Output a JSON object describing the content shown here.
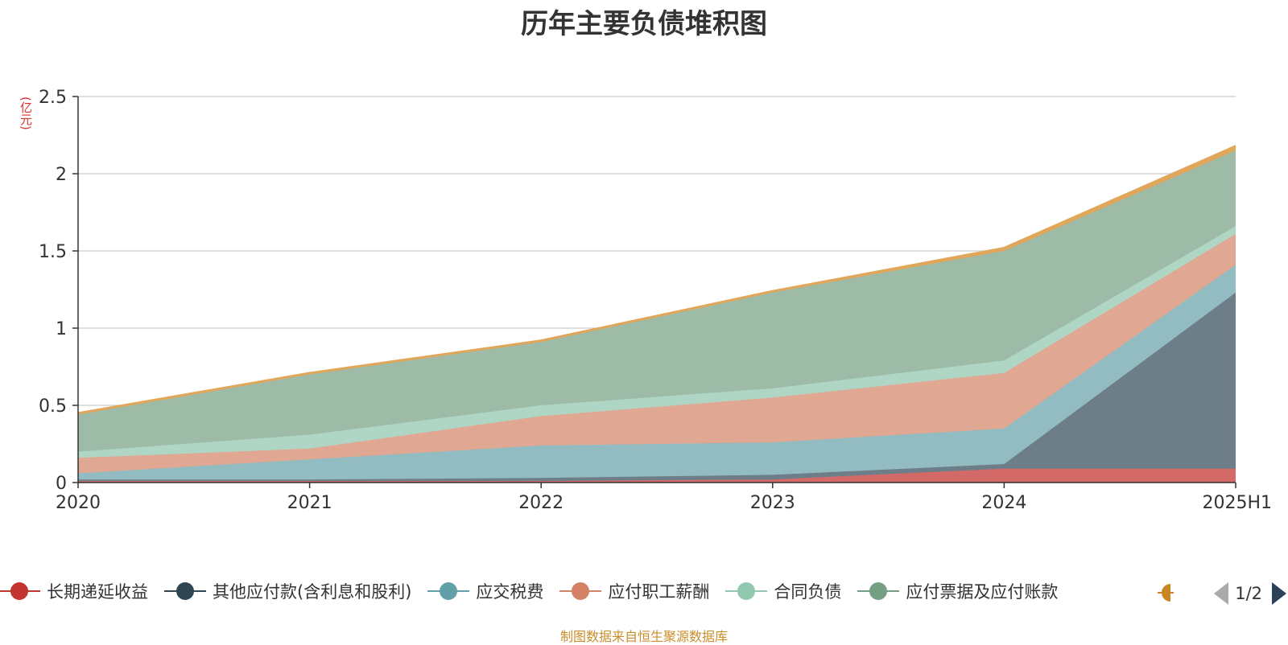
{
  "chart_data": {
    "type": "area",
    "title": "历年主要负债堆积图",
    "unit_label": "(亿元)",
    "categories": [
      "2020",
      "2021",
      "2022",
      "2023",
      "2024",
      "2025H1"
    ],
    "yticks": [
      "0",
      "0.5",
      "1",
      "1.5",
      "2",
      "2.5"
    ],
    "ylim": [
      0,
      2.5
    ],
    "stacked": true,
    "grid": true,
    "series": [
      {
        "name": "长期递延收益",
        "color": "#c23531",
        "fill": "#d46a68",
        "values": [
          0.01,
          0.01,
          0.01,
          0.02,
          0.09,
          0.09
        ]
      },
      {
        "name": "其他应付款(含利息和股利)",
        "color": "#2f4554",
        "fill": "#6e7e89",
        "values": [
          0.01,
          0.01,
          0.02,
          0.03,
          0.03,
          1.14
        ]
      },
      {
        "name": "应交税费",
        "color": "#61a0a8",
        "fill": "#92bcc1",
        "values": [
          0.04,
          0.13,
          0.21,
          0.21,
          0.23,
          0.18
        ]
      },
      {
        "name": "应付职工薪酬",
        "color": "#d48265",
        "fill": "#e0a793",
        "values": [
          0.1,
          0.07,
          0.19,
          0.29,
          0.36,
          0.2
        ]
      },
      {
        "name": "合同负债",
        "color": "#91c7ae",
        "fill": "#afd6c4",
        "values": [
          0.04,
          0.09,
          0.07,
          0.06,
          0.08,
          0.05
        ]
      },
      {
        "name": "应付票据及应付账款",
        "color": "#749f83",
        "fill": "#9ebba8",
        "values": [
          0.24,
          0.39,
          0.41,
          0.62,
          0.71,
          0.49
        ]
      },
      {
        "name": "",
        "color": "#ca8622",
        "fill": "#e0a65a",
        "values": [
          0.01,
          0.01,
          0.01,
          0.01,
          0.02,
          0.03
        ]
      }
    ]
  },
  "legend": {
    "page": "1/2"
  },
  "footer": "制图数据来自恒生聚源数据库"
}
